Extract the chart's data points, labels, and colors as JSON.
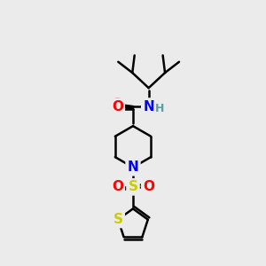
{
  "background_color": "#ebebeb",
  "bond_color": "#000000",
  "bond_width": 1.8,
  "atom_colors": {
    "O": "#ff0000",
    "N": "#0000ff",
    "S_thio": "#cccc00",
    "S_sulfonyl": "#cccc00",
    "H": "#5f9ea0",
    "C": "#000000"
  },
  "font_size_atom": 11,
  "font_size_H": 9,
  "xlim": [
    0,
    10
  ],
  "ylim": [
    0,
    12
  ]
}
